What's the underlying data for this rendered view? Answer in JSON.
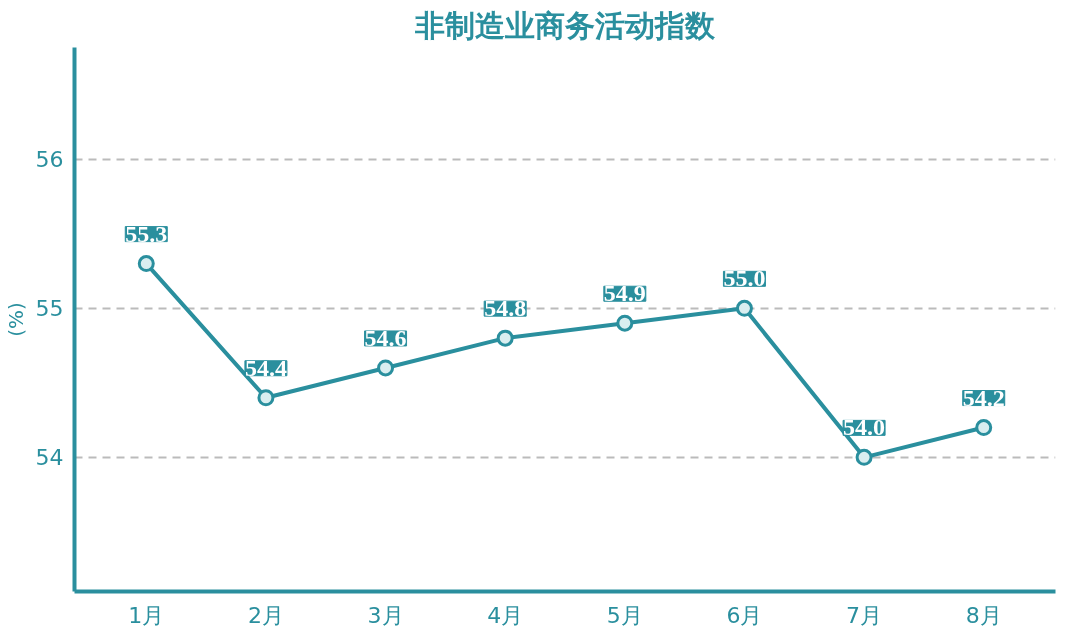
{
  "chart_data": {
    "type": "line",
    "title": "非制造业商务活动指数",
    "ylabel": "(%)",
    "categories": [
      "1月",
      "2月",
      "3月",
      "4月",
      "5月",
      "6月",
      "7月",
      "8月"
    ],
    "series": [
      {
        "color": "#2a8f9e",
        "values": [
          55.3,
          54.4,
          54.6,
          54.8,
          54.9,
          55.0,
          54.0,
          54.2
        ],
        "value_labels": [
          "55.3",
          "54.4",
          "54.6",
          "54.8",
          "54.9",
          "55.0",
          "54.0",
          "54.2"
        ]
      }
    ],
    "ylim": [
      53.1,
      56.75
    ],
    "yticks": [
      54,
      55,
      56
    ],
    "grid": "y",
    "marker": "circle"
  }
}
